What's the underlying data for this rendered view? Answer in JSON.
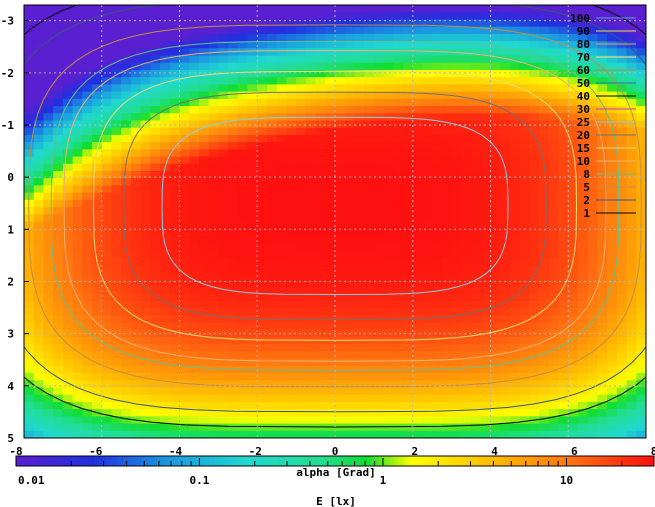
{
  "chart_data": {
    "type": "heatmap",
    "title": "",
    "x_axis": {
      "label": "alpha [Grad]",
      "range": [
        -8,
        8
      ],
      "ticks": [
        "-8",
        "-6",
        "-4",
        "-2",
        "0",
        "2",
        "4",
        "6",
        "8"
      ]
    },
    "y_axis": {
      "label": "",
      "range": [
        -3.3,
        5
      ],
      "ticks": [
        "-3",
        "-2",
        "-1",
        "0",
        "1",
        "2",
        "3",
        "4",
        "5"
      ]
    },
    "colorbar": {
      "label": "E [lx]",
      "scale": "log",
      "range": [
        0.01,
        30
      ],
      "ticks": [
        "0.01",
        "0.1",
        "1",
        "10"
      ]
    },
    "contour_levels": [
      {
        "value": "100",
        "color": "#5aa0c8"
      },
      {
        "value": "90",
        "color": "#e6e24a"
      },
      {
        "value": "80",
        "color": "#f0a060"
      },
      {
        "value": "70",
        "color": "#ffe070"
      },
      {
        "value": "60",
        "color": "#c08a30"
      },
      {
        "value": "50",
        "color": "#3a6ea0"
      },
      {
        "value": "40",
        "color": "#000000"
      },
      {
        "value": "30",
        "color": "#c040c0"
      },
      {
        "value": "25",
        "color": "#8ad0e0"
      },
      {
        "value": "20",
        "color": "#707070"
      },
      {
        "value": "15",
        "color": "#e8e070"
      },
      {
        "value": "10",
        "color": "#f0b070"
      },
      {
        "value": "8",
        "color": "#60c090"
      },
      {
        "value": "5",
        "color": "#c09040"
      },
      {
        "value": "2",
        "color": "#305880"
      },
      {
        "value": "1",
        "color": "#000000"
      }
    ],
    "peak_illuminance_lx": 30,
    "peak_location": [
      0,
      0
    ],
    "grid": true,
    "legend_position": "top-right"
  }
}
